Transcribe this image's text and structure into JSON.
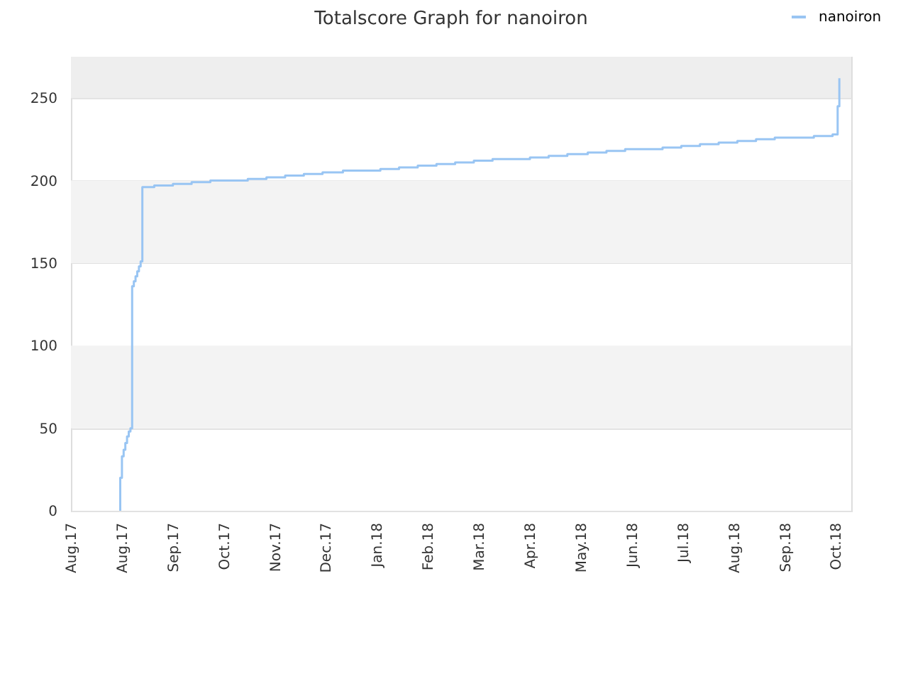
{
  "chart_data": {
    "type": "step",
    "title": "Totalscore Graph for nanoiron",
    "x": [
      "2017-08-30",
      "2017-08-30",
      "2017-08-31",
      "2017-09-01",
      "2017-09-02",
      "2017-09-03",
      "2017-09-04",
      "2017-09-05",
      "2017-09-06",
      "2017-09-07",
      "2017-09-08",
      "2017-09-09",
      "2017-09-10",
      "2017-09-11",
      "2017-09-12",
      "2017-09-12",
      "2017-09-19",
      "2017-09-30",
      "2017-10-11",
      "2017-10-22",
      "2017-11-02",
      "2017-11-13",
      "2017-11-24",
      "2017-12-05",
      "2017-12-16",
      "2017-12-27",
      "2018-01-08",
      "2018-01-19",
      "2018-01-30",
      "2018-02-10",
      "2018-02-21",
      "2018-03-04",
      "2018-03-15",
      "2018-03-26",
      "2018-04-06",
      "2018-04-17",
      "2018-04-28",
      "2018-05-09",
      "2018-05-20",
      "2018-06-01",
      "2018-06-12",
      "2018-06-23",
      "2018-07-04",
      "2018-07-15",
      "2018-07-26",
      "2018-08-06",
      "2018-08-17",
      "2018-08-28",
      "2018-09-08",
      "2018-09-19",
      "2018-09-30",
      "2018-10-12",
      "2018-10-23",
      "2018-10-26",
      "2018-10-27"
    ],
    "series": [
      {
        "name": "nanoiron",
        "color": "#99c5f3",
        "values": [
          0,
          20,
          33,
          37,
          41,
          45,
          48,
          50,
          136,
          139,
          142,
          145,
          148,
          151,
          153,
          196,
          197,
          198,
          199,
          200,
          200,
          201,
          202,
          203,
          204,
          205,
          206,
          206,
          207,
          208,
          209,
          210,
          211,
          212,
          213,
          213,
          214,
          215,
          216,
          217,
          218,
          219,
          219,
          220,
          221,
          222,
          223,
          224,
          225,
          226,
          226,
          227,
          228,
          245,
          262
        ]
      }
    ],
    "xlim": [
      "2017-08-01",
      "2018-11-03"
    ],
    "xticks": [
      {
        "value": "2017-08-01",
        "label": "Aug.17"
      },
      {
        "value": "2017-08-31",
        "label": "Aug.17"
      },
      {
        "value": "2017-09-30",
        "label": "Sep.17"
      },
      {
        "value": "2017-10-30",
        "label": "Oct.17"
      },
      {
        "value": "2017-11-29",
        "label": "Nov.17"
      },
      {
        "value": "2017-12-29",
        "label": "Dec.17"
      },
      {
        "value": "2018-01-28",
        "label": "Jan.18"
      },
      {
        "value": "2018-02-27",
        "label": "Feb.18"
      },
      {
        "value": "2018-03-29",
        "label": "Mar.18"
      },
      {
        "value": "2018-04-28",
        "label": "Apr.18"
      },
      {
        "value": "2018-05-28",
        "label": "May.18"
      },
      {
        "value": "2018-06-27",
        "label": "Jun.18"
      },
      {
        "value": "2018-07-27",
        "label": "Jul.18"
      },
      {
        "value": "2018-08-26",
        "label": "Aug.18"
      },
      {
        "value": "2018-09-25",
        "label": "Sep.18"
      },
      {
        "value": "2018-10-25",
        "label": "Oct.18"
      }
    ],
    "ylim": [
      0,
      275
    ],
    "yticks": [
      0,
      50,
      100,
      150,
      200,
      250
    ],
    "bands": [
      {
        "axis": "y",
        "from": 50,
        "to": 100,
        "color": "#f3f3f3"
      },
      {
        "axis": "y",
        "from": 150,
        "to": 200,
        "color": "#f3f3f3"
      },
      {
        "axis": "y",
        "from": 250,
        "to": 275,
        "color": "#eeeeee"
      }
    ],
    "grid": "y",
    "legend": "top right"
  }
}
